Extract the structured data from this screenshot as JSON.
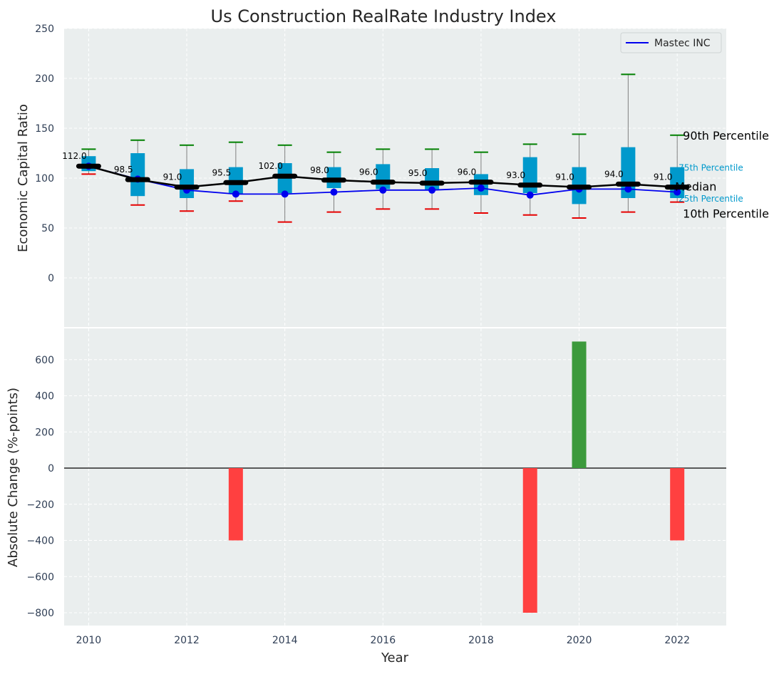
{
  "chart_data": [
    {
      "type": "box",
      "title": "Us Construction RealRate Industry Index",
      "ylabel": "Economic Capital Ratio",
      "ylim": [
        -50,
        250
      ],
      "yticks": [
        0,
        50,
        100,
        150,
        200,
        250
      ],
      "xlim": [
        2009.5,
        2023.0
      ],
      "grid": true,
      "legend": {
        "position": "top-right",
        "entries": [
          "Mastec INC"
        ]
      },
      "years": [
        2010,
        2011,
        2012,
        2013,
        2014,
        2015,
        2016,
        2017,
        2018,
        2019,
        2020,
        2021,
        2022
      ],
      "p10": [
        104,
        73,
        67,
        77,
        56,
        66,
        69,
        69,
        65,
        63,
        60,
        66,
        76
      ],
      "p25": [
        107,
        82,
        80,
        84,
        85,
        90,
        89,
        88,
        83,
        85,
        74,
        80,
        80
      ],
      "median": [
        112.0,
        98.5,
        91.0,
        95.5,
        102.0,
        98.0,
        96.0,
        95.0,
        96.0,
        93.0,
        91.0,
        94.0,
        91.0
      ],
      "p75": [
        122,
        125,
        109,
        111,
        115,
        111,
        114,
        110,
        104,
        121,
        111,
        131,
        111
      ],
      "p90": [
        129,
        138,
        133,
        136,
        133,
        126,
        129,
        129,
        126,
        134,
        144,
        204,
        143
      ],
      "median_labels": [
        "112.0",
        "98.5",
        "91.0",
        "95.5",
        "102.0",
        "98.0",
        "96.0",
        "95.0",
        "96.0",
        "93.0",
        "91.0",
        "94.0",
        "91.0"
      ],
      "series": [
        {
          "name": "Mastec INC",
          "values": [
            112,
            99,
            88,
            84,
            84,
            86,
            88,
            88,
            90,
            83,
            89,
            89,
            86
          ],
          "color": "#0000ee"
        }
      ],
      "percentile_labels": {
        "p90": "90th Percentile",
        "p75": "75th Percentile",
        "median": "Median",
        "p25": "25th Percentile",
        "p10": "10th Percentile"
      },
      "colors": {
        "box": "#0099cc",
        "median": "#000000",
        "p90_cap": "#008000",
        "p10_cap": "#e60000",
        "whisker": "#808080"
      }
    },
    {
      "type": "bar",
      "xlabel": "Year",
      "ylabel": "Absolute Change (%-points)",
      "ylim": [
        -870,
        780
      ],
      "yticks": [
        -800,
        -600,
        -400,
        -200,
        0,
        200,
        400,
        600
      ],
      "xticks": [
        2010,
        2012,
        2014,
        2016,
        2018,
        2020,
        2022
      ],
      "xlim": [
        2009.5,
        2023.0
      ],
      "grid": true,
      "categories": [
        2013,
        2019,
        2020,
        2022
      ],
      "values": [
        -400,
        -800,
        700,
        -400
      ],
      "colors": {
        "positive": "#3c9a3c",
        "negative": "#ff4040"
      }
    }
  ]
}
